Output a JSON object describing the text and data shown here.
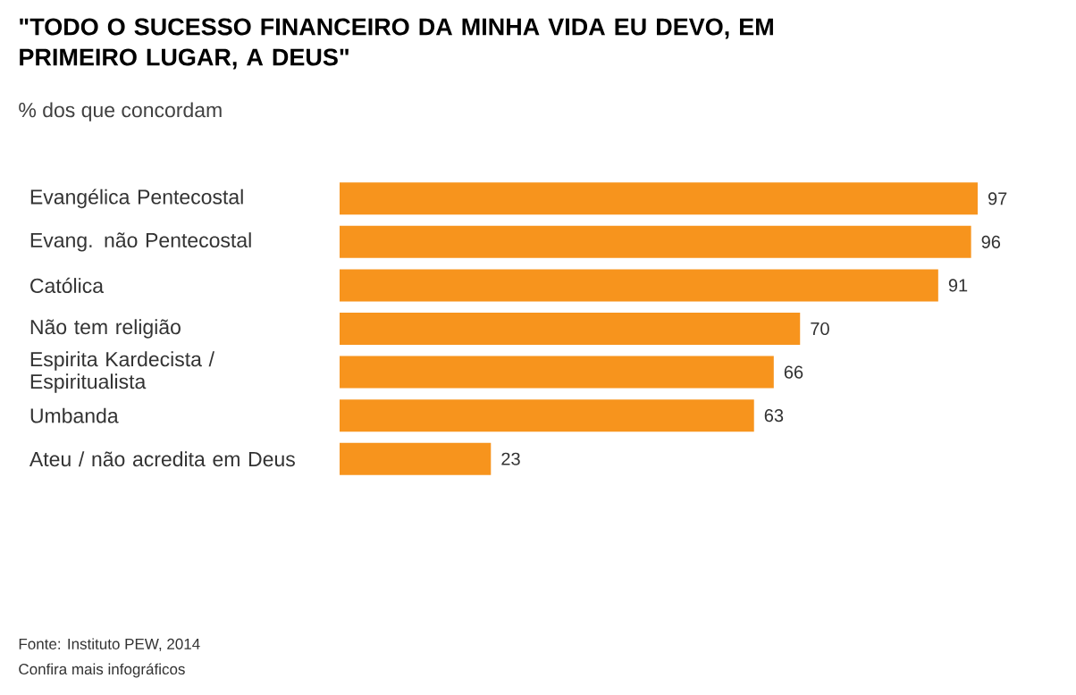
{
  "chart_data": {
    "type": "bar",
    "orientation": "horizontal",
    "title": "\"TODO O SUCESSO FINANCEIRO DA MINHA VIDA EU DEVO, EM PRIMEIRO LUGAR, A DEUS\"",
    "subtitle": "% dos que concordam",
    "categories": [
      "Evangélica Pentecostal",
      "Evang. não Pentecostal",
      "Católica",
      "Não tem religião",
      "Espirita Kardecista / Espiritualista",
      "Umbanda",
      "Ateu / não acredita em Deus"
    ],
    "values": [
      97,
      96,
      91,
      70,
      66,
      63,
      23
    ],
    "color": "#f7941d",
    "data_labels": true,
    "annotations": [
      "Fonte: Instituto PEW, 2014",
      "Confira mais infográficos"
    ]
  }
}
